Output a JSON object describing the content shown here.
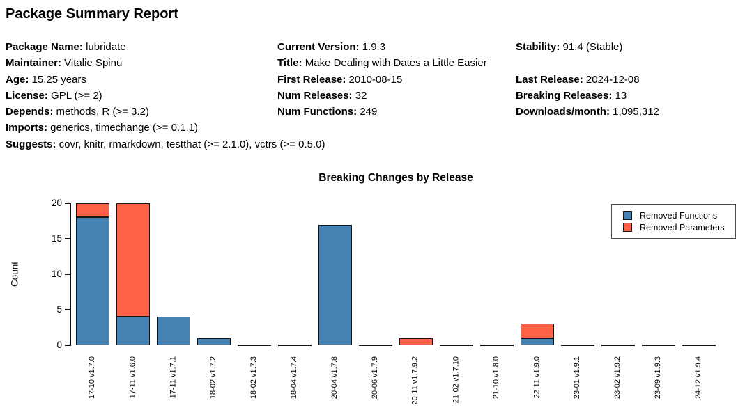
{
  "report": {
    "title": "Package Summary Report",
    "info_rows": [
      {
        "cells": [
          {
            "label": "Package Name:",
            "value": "lubridate"
          },
          {
            "label": "Current Version:",
            "value": "1.9.3"
          },
          {
            "label": "Stability:",
            "value": "91.4 (Stable)"
          }
        ]
      },
      {
        "cells": [
          {
            "label": "Maintainer:",
            "value": "Vitalie Spinu"
          },
          {
            "label": "Title:",
            "value": "Make Dealing with Dates a Little Easier"
          },
          null
        ]
      },
      {
        "cells": [
          {
            "label": "Age:",
            "value": "15.25 years"
          },
          {
            "label": "First Release:",
            "value": "2010-08-15"
          },
          {
            "label": "Last Release:",
            "value": "2024-12-08"
          }
        ]
      },
      {
        "cells": [
          {
            "label": "License:",
            "value": "GPL (>= 2)"
          },
          {
            "label": "Num Releases:",
            "value": "32"
          },
          {
            "label": "Breaking Releases:",
            "value": "13"
          }
        ]
      },
      {
        "cells": [
          {
            "label": "Depends:",
            "value": "methods, R (>= 3.2)"
          },
          {
            "label": "Num Functions:",
            "value": "249"
          },
          {
            "label": "Downloads/month:",
            "value": "1,095,312"
          }
        ]
      },
      {
        "cells": [
          {
            "label": "Imports:",
            "value": "generics, timechange (>= 0.1.1)"
          },
          null,
          null
        ]
      },
      {
        "cells": [
          {
            "label": "Suggests:",
            "value": "covr, knitr, rmarkdown, testthat (>= 2.1.0), vctrs (>= 0.5.0)"
          },
          null,
          null
        ]
      }
    ]
  },
  "chart_data": {
    "type": "bar",
    "stacked": true,
    "title": "Breaking Changes by Release",
    "xlabel": "",
    "ylabel": "Count",
    "ylim": [
      0,
      20
    ],
    "yticks": [
      0,
      5,
      10,
      15,
      20
    ],
    "grid": false,
    "legend_position": "top-right",
    "bar_edge_color": "#141414",
    "categories": [
      "17-10 v1.7.0",
      "17-11 v1.6.0",
      "17-11 v1.7.1",
      "18-02 v1.7.2",
      "18-02 v1.7.3",
      "18-04 v1.7.4",
      "20-04 v1.7.8",
      "20-06 v1.7.9",
      "20-11 v1.7.9.2",
      "21-02 v1.7.10",
      "21-10 v1.8.0",
      "22-11 v1.9.0",
      "23-01 v1.9.1",
      "23-02 v1.9.2",
      "23-09 v1.9.3",
      "24-12 v1.9.4"
    ],
    "series": [
      {
        "name": "Removed Functions",
        "color": "#4682B4",
        "values": [
          18,
          4,
          4,
          1,
          0,
          0,
          17,
          0,
          0,
          0,
          0,
          1,
          0,
          0,
          0,
          0
        ]
      },
      {
        "name": "Removed Parameters",
        "color": "#FF6347",
        "values": [
          2,
          16,
          0,
          0,
          0,
          0,
          0,
          0,
          1,
          0,
          0,
          2,
          0,
          0,
          0,
          0
        ]
      }
    ]
  }
}
